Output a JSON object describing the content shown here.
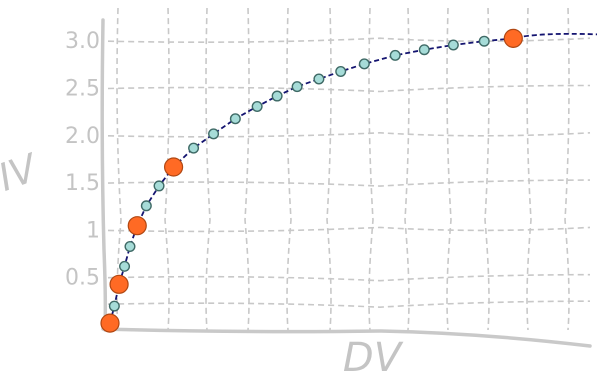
{
  "chart_data": {
    "type": "line",
    "title": "",
    "xlabel": "DV",
    "ylabel": "IV",
    "yticks": [
      "0.5",
      "1",
      "1.5",
      "2.0",
      "2.5",
      "3.0"
    ],
    "ytick_values": [
      0.5,
      1,
      1.5,
      2.0,
      2.5,
      3.0
    ],
    "xlim": [
      0,
      12
    ],
    "ylim": [
      0,
      3.15
    ],
    "grid": true,
    "style": "hand-drawn",
    "colors": {
      "curve": "#141470",
      "small_marker": "#a6dcd8",
      "large_marker": "#ff6a24",
      "grid": "#c8c8c8",
      "axis": "#c9c9c9"
    },
    "series": [
      {
        "values_x": [
          0,
          0.12,
          0.25,
          0.4,
          0.55,
          0.75,
          1.0,
          1.35,
          1.75,
          2.3,
          2.85,
          3.45,
          4.05,
          4.6,
          5.15,
          5.75,
          6.35,
          7.0,
          7.85,
          8.65,
          9.45,
          10.3,
          11.1
        ],
        "values_y": [
          0.02,
          0.2,
          0.43,
          0.62,
          0.83,
          1.05,
          1.26,
          1.47,
          1.67,
          1.87,
          2.02,
          2.18,
          2.31,
          2.42,
          2.52,
          2.6,
          2.68,
          2.76,
          2.85,
          2.91,
          2.96,
          3.0,
          3.03
        ],
        "highlight": [
          0,
          2,
          5,
          8,
          22
        ]
      }
    ]
  }
}
